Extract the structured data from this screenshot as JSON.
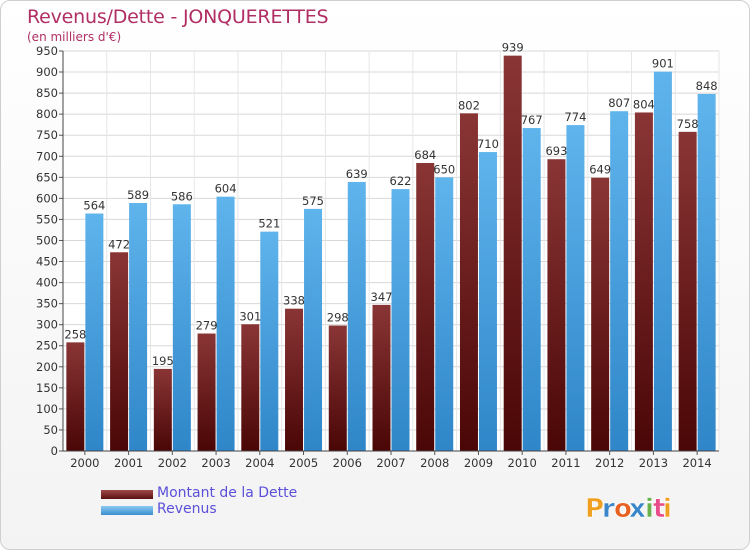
{
  "title": "Revenus/Dette - JONQUERETTES",
  "subtitle": "(en milliers d'€)",
  "legend": {
    "debt_label": "Montant de la Dette",
    "revenue_label": "Revenus"
  },
  "logo": {
    "text": "Proxiti",
    "letters": [
      "P",
      "r",
      "o",
      "x",
      "i",
      "t",
      "i"
    ],
    "colors": [
      "#f0a020",
      "#3a86c8",
      "#e86020",
      "#3a86c8",
      "#6ab04c",
      "#e84c8a",
      "#f0a020"
    ]
  },
  "colors": {
    "debt": "#6b1e1e",
    "revenue": "#4aa3e0",
    "title": "#b02e64",
    "legend_text": "#5b4fd9"
  },
  "chart_data": {
    "type": "bar",
    "categories": [
      "2000",
      "2001",
      "2002",
      "2003",
      "2004",
      "2005",
      "2006",
      "2007",
      "2008",
      "2009",
      "2010",
      "2011",
      "2012",
      "2013",
      "2014"
    ],
    "series": [
      {
        "name": "Montant de la Dette",
        "values": [
          258,
          472,
          195,
          279,
          301,
          338,
          298,
          347,
          684,
          802,
          939,
          693,
          649,
          804,
          758
        ]
      },
      {
        "name": "Revenus",
        "values": [
          564,
          589,
          586,
          604,
          521,
          575,
          639,
          622,
          650,
          710,
          767,
          774,
          807,
          901,
          848
        ]
      }
    ],
    "yticks": [
      0,
      50,
      100,
      150,
      200,
      250,
      300,
      350,
      400,
      450,
      500,
      550,
      600,
      650,
      700,
      750,
      800,
      850,
      900,
      950
    ],
    "ylim": [
      0,
      950
    ],
    "grid": true
  }
}
